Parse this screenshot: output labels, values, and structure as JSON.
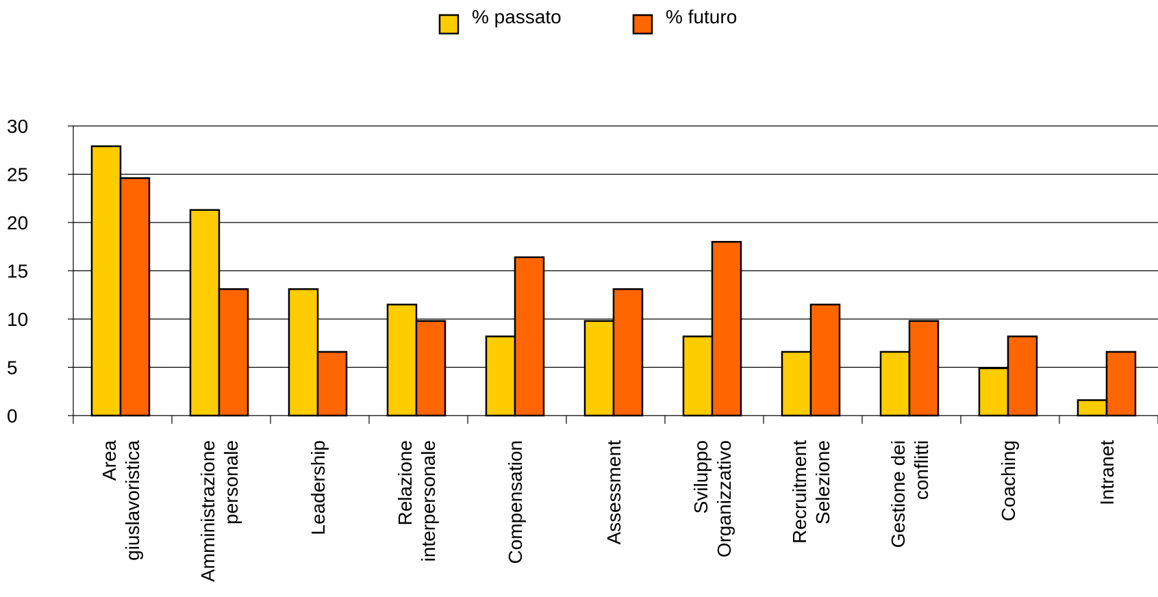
{
  "chart_data": {
    "type": "bar",
    "title": "",
    "xlabel": "",
    "ylabel": "",
    "ylim": [
      0,
      30
    ],
    "yticks": [
      0,
      5,
      10,
      15,
      20,
      25,
      30
    ],
    "grid": true,
    "legend_position": "top-center",
    "categories": [
      [
        "Area",
        "giuslavoristica"
      ],
      [
        "Amministrazione",
        "personale"
      ],
      [
        "Leadership"
      ],
      [
        "Relazione",
        "interpersonale"
      ],
      [
        "Compensation"
      ],
      [
        "Assessment"
      ],
      [
        "Sviluppo",
        "Organizzativo"
      ],
      [
        "Recruitment",
        "Selezione"
      ],
      [
        "Gestione dei",
        "conflitti"
      ],
      [
        "Coaching"
      ],
      [
        "Intranet"
      ]
    ],
    "series": [
      {
        "name": "% passato",
        "color": "#FFCC00",
        "values": [
          27.9,
          21.3,
          13.1,
          11.5,
          8.2,
          9.8,
          8.2,
          6.6,
          6.6,
          4.9,
          1.6
        ]
      },
      {
        "name": "% futuro",
        "color": "#FF6600",
        "values": [
          24.6,
          13.1,
          6.6,
          9.8,
          16.4,
          13.1,
          18.0,
          11.5,
          9.8,
          8.2,
          6.6
        ]
      }
    ]
  }
}
